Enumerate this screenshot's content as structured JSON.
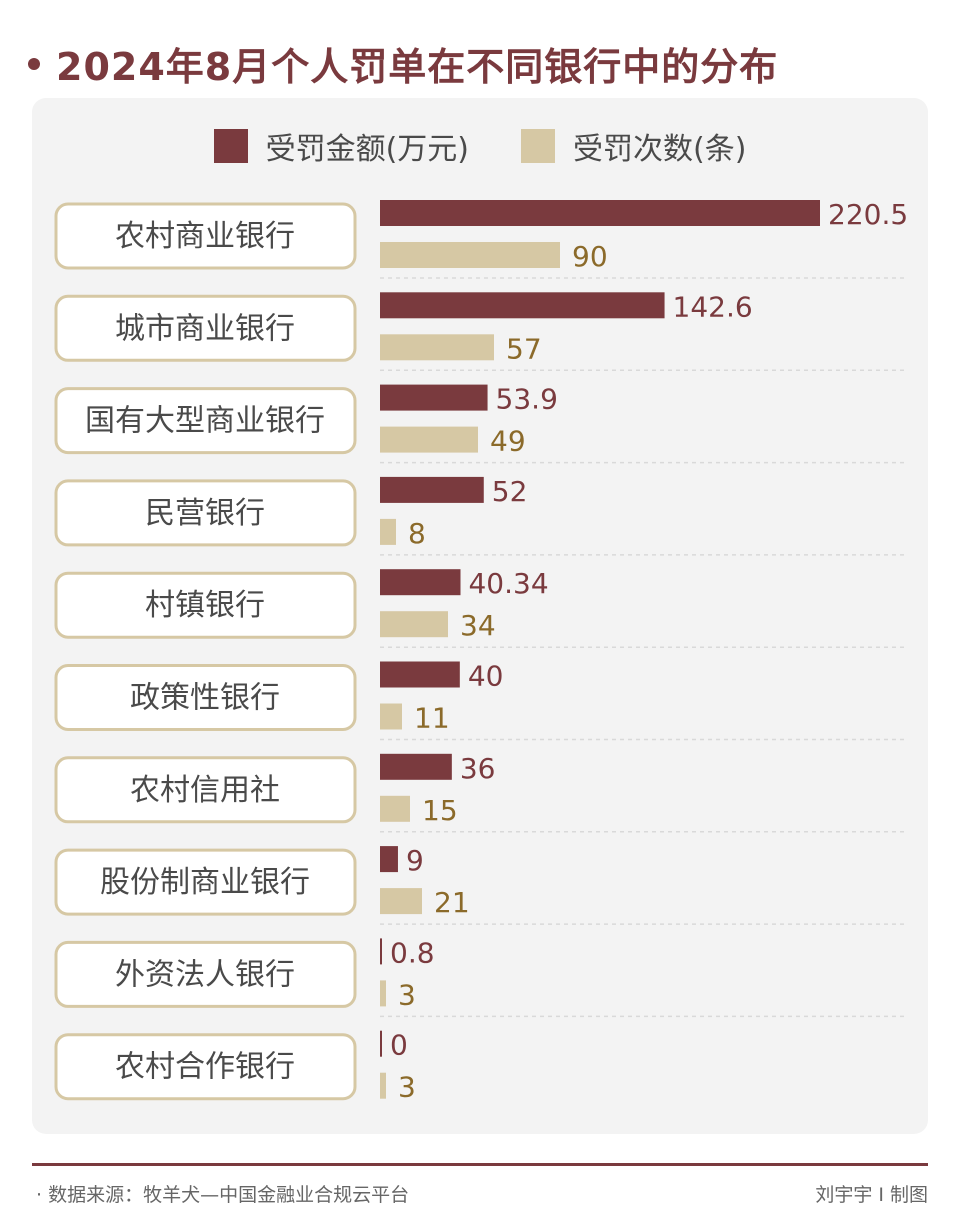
{
  "title": "2024年8月个人罚单在不同银行中的分布",
  "footer": {
    "source": "· 数据来源：牧羊犬—中国金融业合规云平台",
    "credit": "刘宇宇 I 制图"
  },
  "colors": {
    "amount": "#7a3a3e",
    "count": "#d6c8a4",
    "count_label": "#8b6a2a",
    "label_border": "#d6c8a4",
    "title": "#7a3a3e"
  },
  "chart_data": {
    "type": "bar",
    "orientation": "horizontal",
    "legend_position": "top-center",
    "categories": [
      "农村商业银行",
      "城市商业银行",
      "国有大型商业银行",
      "民营银行",
      "村镇银行",
      "政策性银行",
      "农村信用社",
      "股份制商业银行",
      "外资法人银行",
      "农村合作银行"
    ],
    "series": [
      {
        "name": "受罚金额(万元)",
        "values": [
          220.5,
          142.6,
          53.9,
          52,
          40.34,
          40,
          36,
          9,
          0.8,
          0
        ],
        "labels": [
          "220.5",
          "142.6",
          "53.9",
          "52",
          "40.34",
          "40",
          "36",
          "9",
          "0.8",
          "0"
        ]
      },
      {
        "name": "受罚次数(条)",
        "values": [
          90,
          57,
          49,
          8,
          34,
          11,
          15,
          21,
          3,
          3
        ],
        "labels": [
          "90",
          "57",
          "49",
          "8",
          "34",
          "11",
          "15",
          "21",
          "3",
          "3"
        ]
      }
    ],
    "grid": false
  }
}
